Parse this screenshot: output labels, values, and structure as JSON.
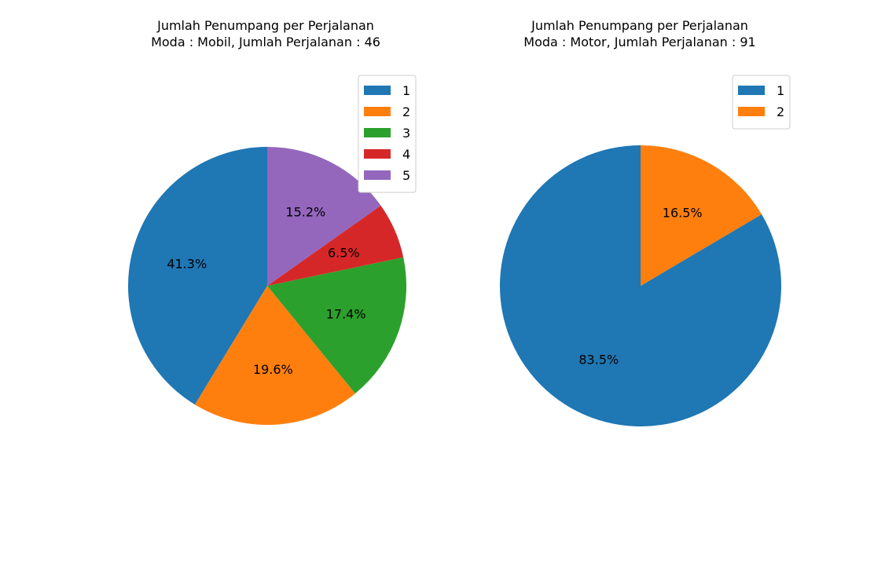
{
  "chart_data": [
    {
      "type": "pie",
      "title": "Jumlah Penumpang per Perjalanan",
      "subtitle": "Moda : Mobil, Jumlah Perjalanan : 46",
      "categories": [
        "1",
        "2",
        "3",
        "4",
        "5"
      ],
      "values": [
        41.3,
        19.6,
        17.4,
        6.5,
        15.2
      ],
      "value_labels": [
        "41.3%",
        "19.6%",
        "17.4%",
        "6.5%",
        "15.2%"
      ],
      "colors": [
        "#1f77b4",
        "#ff7f0e",
        "#2ca02c",
        "#d62728",
        "#9467bd"
      ],
      "start_angle_deg": 90,
      "direction": "counterclockwise",
      "legend_position": "top-right"
    },
    {
      "type": "pie",
      "title": "Jumlah Penumpang per Perjalanan",
      "subtitle": "Moda : Motor, Jumlah Perjalanan : 91",
      "categories": [
        "1",
        "2"
      ],
      "values": [
        83.5,
        16.5
      ],
      "value_labels": [
        "83.5%",
        "16.5%"
      ],
      "colors": [
        "#1f77b4",
        "#ff7f0e"
      ],
      "start_angle_deg": 90,
      "direction": "counterclockwise",
      "legend_position": "top-right"
    }
  ]
}
